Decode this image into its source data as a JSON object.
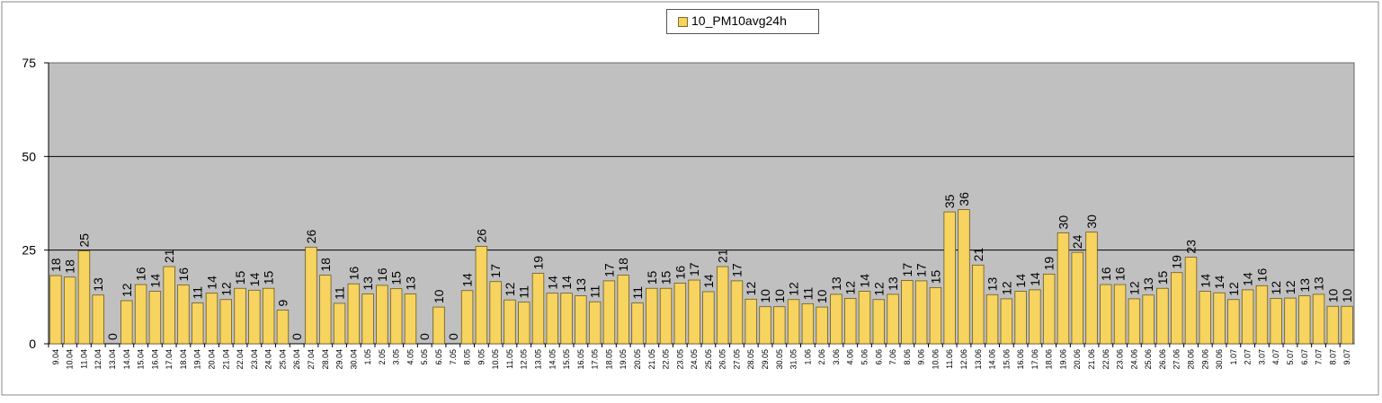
{
  "chart_data": {
    "type": "bar",
    "legend": {
      "label": "10_PM10avg24h",
      "position": "top-center"
    },
    "ylim": [
      0,
      75
    ],
    "yticks": [
      "75",
      "50",
      "25",
      "0"
    ],
    "grid": true,
    "plot_background": "#c0c0c0",
    "bar_color": "#f7d35f",
    "bar_edge_color": "#6b5a1e",
    "categories": [
      "9.04",
      "10.04",
      "11.04",
      "12.04",
      "13.04",
      "14.04",
      "15.04",
      "16.04",
      "17.04",
      "18.04",
      "19.04",
      "20.04",
      "21.04",
      "22.04",
      "23.04",
      "24.04",
      "25.04",
      "26.04",
      "27.04",
      "28.04",
      "29.04",
      "30.04",
      "1.05",
      "2.05",
      "3.05",
      "4.05",
      "5.05",
      "6.05",
      "7.05",
      "8.05",
      "9.05",
      "10.05",
      "11.05",
      "12.05",
      "13.05",
      "14.05",
      "15.05",
      "16.05",
      "17.05",
      "18.05",
      "19.05",
      "20.05",
      "21.05",
      "22.05",
      "23.05",
      "24.05",
      "25.05",
      "26.05",
      "27.05",
      "28.05",
      "29.05",
      "30.05",
      "31.05",
      "1.06",
      "2.06",
      "3.06",
      "4.06",
      "5.06",
      "6.06",
      "7.06",
      "8.06",
      "9.06",
      "10.06",
      "11.06",
      "12.06",
      "13.06",
      "14.06",
      "15.06",
      "16.06",
      "17.06",
      "18.06",
      "19.06",
      "20.06",
      "21.06",
      "22.06",
      "23.06",
      "24.06",
      "25.06",
      "26.06",
      "27.06",
      "28.06",
      "29.06",
      "30.06",
      "1.07",
      "2.07",
      "3.07",
      "4.07",
      "5.07",
      "6.07",
      "7.07",
      "8.07",
      "9.07"
    ],
    "values": [
      18.2,
      17.8,
      24.8,
      13,
      0,
      11.5,
      15.8,
      14,
      20.6,
      15.7,
      10.9,
      13.5,
      11.8,
      14.8,
      14.3,
      14.8,
      9,
      0,
      25.8,
      18.3,
      10.8,
      16,
      13.3,
      15.6,
      14.7,
      13.3,
      0,
      9.8,
      0,
      14.2,
      26,
      16.6,
      11.7,
      11.1,
      18.8,
      13.5,
      13.5,
      12.8,
      11.2,
      16.8,
      18.3,
      10.9,
      14.8,
      14.8,
      16.2,
      17,
      13.9,
      20.6,
      16.8,
      11.9,
      9.9,
      9.9,
      11.8,
      10.7,
      9.8,
      13.2,
      12.1,
      14,
      11.8,
      13.2,
      16.9,
      16.8,
      15,
      35.2,
      35.8,
      21,
      13.1,
      12,
      14,
      14.4,
      18.6,
      29.6,
      24.4,
      29.8,
      15.8,
      15.8,
      12,
      13,
      14.8,
      19,
      23.1,
      14,
      13.6,
      11.8,
      14.4,
      15.5,
      12.1,
      12.2,
      12.8,
      13.2,
      10,
      10
    ],
    "data_labels": [
      "18",
      "18",
      "25",
      "13",
      "0",
      "12",
      "16",
      "14",
      "21",
      "16",
      "11",
      "14",
      "12",
      "15",
      "14",
      "15",
      "9",
      "0",
      "26",
      "18",
      "11",
      "16",
      "13",
      "16",
      "15",
      "13",
      "0",
      "10",
      "0",
      "14",
      "26",
      "17",
      "12",
      "11",
      "19",
      "14",
      "14",
      "13",
      "11",
      "17",
      "18",
      "11",
      "15",
      "15",
      "16",
      "17",
      "14",
      "21",
      "17",
      "12",
      "10",
      "10",
      "12",
      "11",
      "10",
      "13",
      "12",
      "14",
      "12",
      "13",
      "17",
      "17",
      "15",
      "35",
      "36",
      "21",
      "13",
      "12",
      "14",
      "14",
      "19",
      "30",
      "24",
      "30",
      "16",
      "16",
      "12",
      "13",
      "15",
      "19",
      "23",
      "14",
      "14",
      "12",
      "14",
      "16",
      "12",
      "12",
      "13",
      "13",
      "10",
      "10"
    ]
  }
}
